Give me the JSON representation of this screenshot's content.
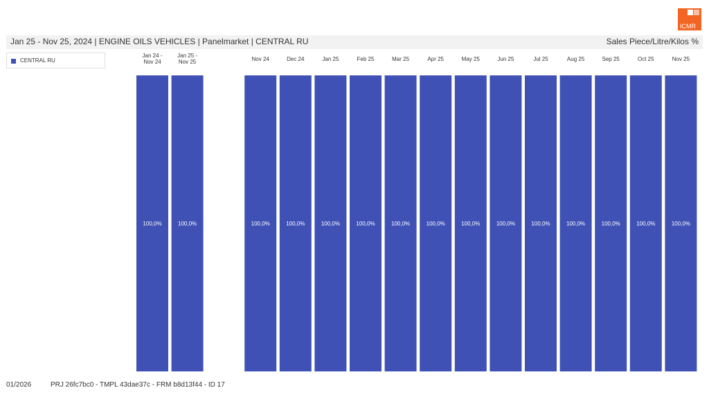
{
  "header": {
    "title": "Jan 25 - Nov 25, 2024 | ENGINE OILS VEHICLES | Panelmarket | CENTRAL RU",
    "unit": "Sales Piece/Litre/Kilos %"
  },
  "logo": {
    "text": "ICMR",
    "color": "#f26522"
  },
  "footer": {
    "date": "01/2026",
    "ids": "PRJ 26fc7bc0 - TMPL 43dae37c - FRM b8d13f44 - ID 17"
  },
  "colors": {
    "bar": "#3f51b5"
  },
  "chart_data": {
    "type": "bar",
    "stacked": true,
    "legend_position": "top-left",
    "grid": false,
    "ylim": [
      0,
      100
    ],
    "categories": [
      [
        "Jan 24 -",
        "Nov 24"
      ],
      [
        "Jan 25 -",
        "Nov 25"
      ],
      "Nov 24",
      "Dec 24",
      "Jan 25",
      "Feb 25",
      "Mar 25",
      "Apr 25",
      "May 25",
      "Jun 25",
      "Jul 25",
      "Aug 25",
      "Sep 25",
      "Oct 25",
      "Nov 25"
    ],
    "series": [
      {
        "name": "CENTRAL RU",
        "values": [
          100,
          100,
          100,
          100,
          100,
          100,
          100,
          100,
          100,
          100,
          100,
          100,
          100,
          100,
          100
        ],
        "labels": [
          "100,0%",
          "100,0%",
          "100,0%",
          "100,0%",
          "100,0%",
          "100,0%",
          "100,0%",
          "100,0%",
          "100,0%",
          "100,0%",
          "100,0%",
          "100,0%",
          "100,0%",
          "100,0%",
          "100,0%"
        ]
      }
    ]
  }
}
